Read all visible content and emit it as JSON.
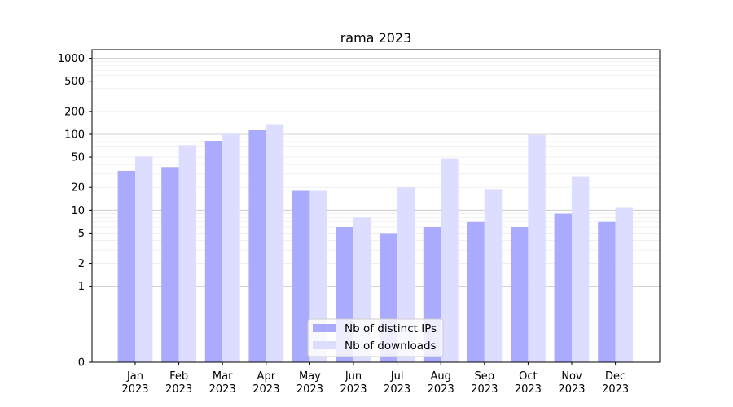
{
  "chart_data": {
    "type": "bar",
    "title": "rama 2023",
    "xlabel": "",
    "ylabel": "",
    "y_scale": "symlog",
    "ylim": [
      0,
      1300
    ],
    "grid": "horizontal",
    "legend_position": "bottom-center",
    "categories": [
      [
        "Jan",
        "2023"
      ],
      [
        "Feb",
        "2023"
      ],
      [
        "Mar",
        "2023"
      ],
      [
        "Apr",
        "2023"
      ],
      [
        "May",
        "2023"
      ],
      [
        "Jun",
        "2023"
      ],
      [
        "Jul",
        "2023"
      ],
      [
        "Aug",
        "2023"
      ],
      [
        "Sep",
        "2023"
      ],
      [
        "Oct",
        "2023"
      ],
      [
        "Nov",
        "2023"
      ],
      [
        "Dec",
        "2023"
      ]
    ],
    "y_ticks": [
      {
        "value": 0,
        "label": "0"
      },
      {
        "value": 1,
        "label": "1"
      },
      {
        "value": 2,
        "label": "2"
      },
      {
        "value": 5,
        "label": "5"
      },
      {
        "value": 10,
        "label": "10"
      },
      {
        "value": 20,
        "label": "20"
      },
      {
        "value": 50,
        "label": "50"
      },
      {
        "value": 100,
        "label": "100"
      },
      {
        "value": 200,
        "label": "200"
      },
      {
        "value": 500,
        "label": "500"
      },
      {
        "value": 1000,
        "label": "1000"
      }
    ],
    "series": [
      {
        "name": "Nb of distinct IPs",
        "color": "#aaaaff",
        "values": [
          33,
          37,
          82,
          113,
          18,
          6,
          5,
          6,
          7,
          6,
          9,
          7
        ]
      },
      {
        "name": "Nb of downloads",
        "color": "#ddddff",
        "values": [
          51,
          72,
          102,
          136,
          18,
          8,
          20,
          48,
          19,
          98,
          28,
          11
        ]
      }
    ]
  }
}
